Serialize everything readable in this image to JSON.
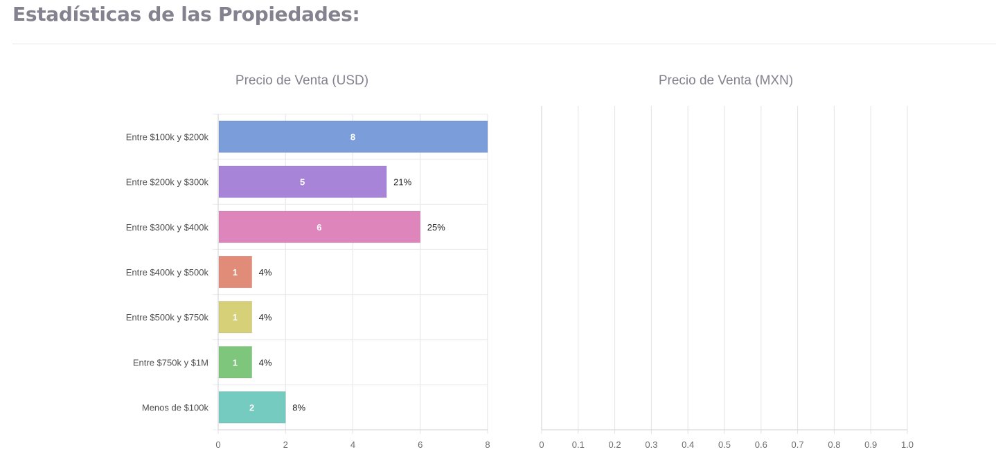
{
  "page": {
    "title": "Estadísticas de las Propiedades:"
  },
  "chart_data": [
    {
      "type": "bar",
      "orientation": "horizontal",
      "title": "Precio de Venta (USD)",
      "categories": [
        "Entre $100k y $200k",
        "Entre $200k y $300k",
        "Entre $300k y $400k",
        "Entre $400k y $500k",
        "Entre $500k y $750k",
        "Entre $750k y $1M",
        "Menos de $100k"
      ],
      "values": [
        8,
        5,
        6,
        1,
        1,
        1,
        2
      ],
      "percent_labels": [
        "",
        "21%",
        "25%",
        "4%",
        "4%",
        "4%",
        "8%"
      ],
      "colors": [
        "#7b9dd9",
        "#a884d9",
        "#de86bb",
        "#e08c79",
        "#d6d078",
        "#7ec67c",
        "#75cbbf"
      ],
      "xlim": [
        0,
        8
      ],
      "xticks": [
        "0",
        "2",
        "4",
        "6",
        "8"
      ],
      "grid": true
    },
    {
      "type": "bar",
      "orientation": "horizontal",
      "title": "Precio de Venta (MXN)",
      "categories": [],
      "values": [],
      "xlim": [
        0,
        1.0
      ],
      "xticks": [
        "0",
        "0.1",
        "0.2",
        "0.3",
        "0.4",
        "0.5",
        "0.6",
        "0.7",
        "0.8",
        "0.9",
        "1.0"
      ],
      "grid": true
    }
  ]
}
